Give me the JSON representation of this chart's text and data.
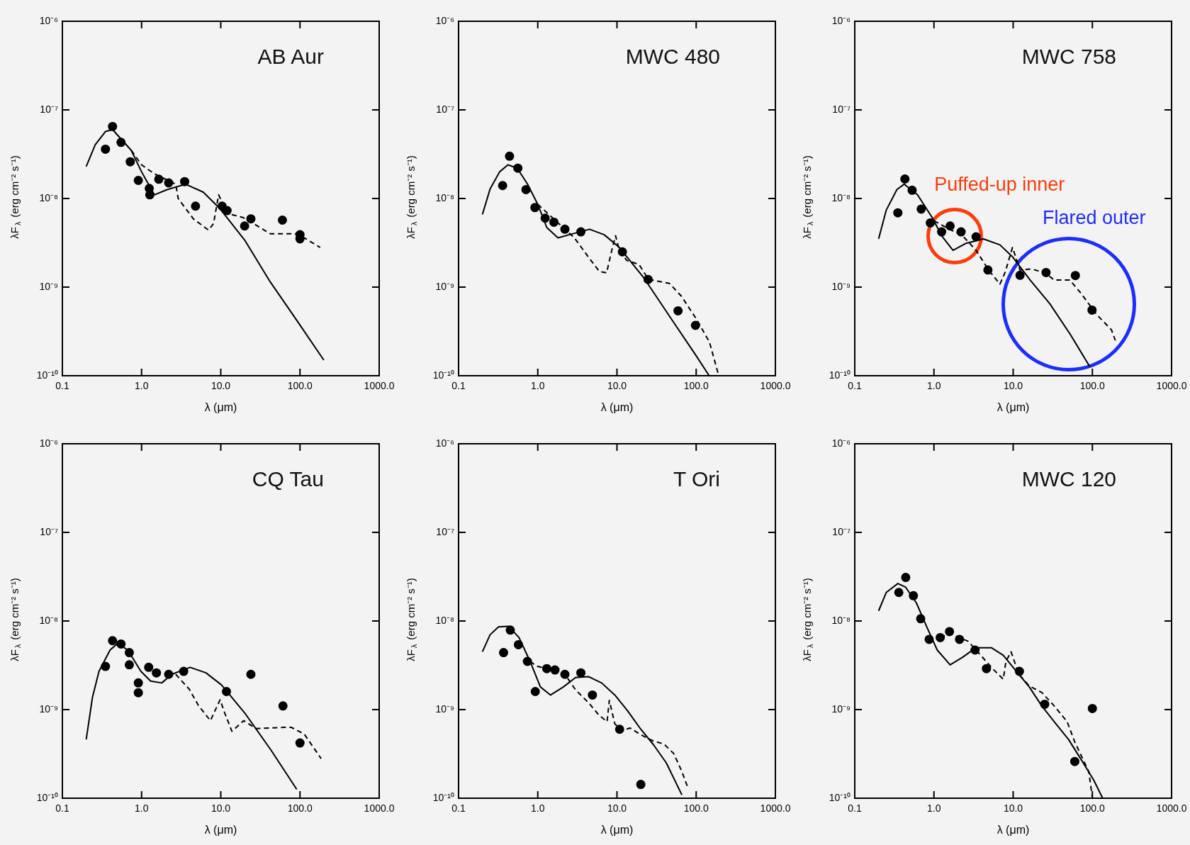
{
  "chart_data": [
    {
      "type": "line",
      "title": "AB Aur",
      "xlabel": "λ (μm)",
      "ylabel": "λF$_{λ}$ (erg cm⁻² s⁻¹)",
      "log": "xy",
      "xlim": [
        0.1,
        1000
      ],
      "ylim": [
        1e-10,
        1e-06
      ],
      "xticks": [
        {
          "value": 0.1,
          "label": "0.1"
        },
        {
          "value": 1,
          "label": "1.0"
        },
        {
          "value": 10,
          "label": "10.0"
        },
        {
          "value": 100,
          "label": "100.0"
        },
        {
          "value": 1000,
          "label": "1000.0"
        }
      ],
      "yticks": [
        {
          "value": 1e-10,
          "label": "10⁻¹⁰"
        },
        {
          "value": 1e-09,
          "label": "10⁻⁹"
        },
        {
          "value": 1e-08,
          "label": "10⁻⁸"
        },
        {
          "value": 1e-07,
          "label": "10⁻⁷"
        },
        {
          "value": 1e-06,
          "label": "10⁻⁶"
        }
      ],
      "series": [
        {
          "type": "scatter",
          "color": "#000000",
          "marker": "circle",
          "x": [
            0.35,
            0.43,
            0.55,
            0.72,
            0.91,
            1.25,
            1.27,
            1.65,
            2.2,
            3.5,
            4.8,
            10.4,
            12,
            20,
            24,
            60,
            100,
            100
          ],
          "values": [
            3.6e-08,
            6.5e-08,
            4.3e-08,
            2.6e-08,
            1.6e-08,
            1.3e-08,
            1.1e-08,
            1.65e-08,
            1.5e-08,
            1.55e-08,
            8.2e-09,
            8.2e-09,
            7.3e-09,
            4.9e-09,
            5.9e-09,
            5.7e-09,
            3.9e-09,
            3.5e-09
          ]
        },
        {
          "type": "line",
          "color": "#000000",
          "marker": "none",
          "line_style": "solid",
          "x": [
            0.2,
            0.26,
            0.35,
            0.43,
            0.74,
            1.0,
            1.45,
            2.1,
            3.6,
            6.0,
            9.6,
            20,
            42,
            93,
            200
          ],
          "values": [
            2.3e-08,
            4.05e-08,
            5.7e-08,
            6e-08,
            3.5e-08,
            2e-08,
            1.1e-08,
            1.26e-08,
            1.45e-08,
            1.18e-08,
            7.8e-09,
            3.4e-09,
            1.15e-09,
            4.1e-10,
            1.5e-10
          ]
        },
        {
          "type": "line",
          "color": "#000000",
          "marker": "none",
          "line_style": "dashed",
          "x": [
            0.74,
            1.0,
            1.45,
            2.7,
            2.9,
            4.5,
            7.0,
            8.1,
            9.4,
            12,
            19,
            26,
            42,
            93,
            180
          ],
          "values": [
            3.5e-08,
            2.4e-08,
            1.9e-08,
            1.45e-08,
            1e-08,
            5.9e-09,
            4.4e-09,
            5.2e-09,
            1.1e-08,
            6.8e-09,
            6.1e-09,
            5.2e-09,
            4e-09,
            4e-09,
            2.8e-09
          ]
        }
      ]
    },
    {
      "type": "line",
      "title": "MWC 480",
      "xlabel": "λ (μm)",
      "ylabel": "λF$_{λ}$ (erg cm⁻² s⁻¹)",
      "log": "xy",
      "xlim": [
        0.1,
        1000
      ],
      "ylim": [
        1e-10,
        1e-06
      ],
      "xticks": [
        {
          "value": 0.1,
          "label": "0.1"
        },
        {
          "value": 1,
          "label": "1.0"
        },
        {
          "value": 10,
          "label": "10.0"
        },
        {
          "value": 100,
          "label": "100.0"
        },
        {
          "value": 1000,
          "label": "1000.0"
        }
      ],
      "yticks": [
        {
          "value": 1e-10,
          "label": "10⁻¹⁰"
        },
        {
          "value": 1e-09,
          "label": "10⁻⁹"
        },
        {
          "value": 1e-08,
          "label": "10⁻⁸"
        },
        {
          "value": 1e-07,
          "label": "10⁻⁷"
        },
        {
          "value": 1e-06,
          "label": "10⁻⁶"
        }
      ],
      "series": [
        {
          "type": "scatter",
          "color": "#000000",
          "marker": "circle",
          "x": [
            0.36,
            0.44,
            0.56,
            0.71,
            0.92,
            1.24,
            1.6,
            2.2,
            3.5,
            11.7,
            24.7,
            59,
            98
          ],
          "values": [
            1.4e-08,
            3e-08,
            2.2e-08,
            1.26e-08,
            7.9e-09,
            6e-09,
            5.4e-09,
            4.5e-09,
            4.2e-09,
            2.5e-09,
            1.22e-09,
            5.4e-10,
            3.7e-10
          ]
        },
        {
          "type": "line",
          "color": "#000000",
          "marker": "none",
          "line_style": "solid",
          "x": [
            0.2,
            0.25,
            0.33,
            0.42,
            0.55,
            0.74,
            1.0,
            1.3,
            1.8,
            2.5,
            4.5,
            6.9,
            10.7,
            22,
            46,
            95,
            146
          ],
          "values": [
            6.6e-09,
            1.28e-08,
            2e-08,
            2.4e-08,
            2.2e-08,
            1.46e-08,
            8.6e-09,
            4.7e-09,
            3.6e-09,
            3.9e-09,
            4.5e-09,
            3.9e-09,
            2.8e-09,
            1.26e-09,
            4.7e-10,
            1.8e-10,
            1e-10
          ]
        },
        {
          "type": "line",
          "color": "#000000",
          "marker": "none",
          "line_style": "dashed",
          "x": [
            1.0,
            2.9,
            4.5,
            6.0,
            7.4,
            8.6,
            9.6,
            10.7,
            13.3,
            19,
            25,
            46,
            65,
            100,
            147,
            190
          ],
          "values": [
            8.6e-09,
            3.6e-09,
            2.1e-09,
            1.5e-09,
            1.45e-09,
            2.6e-09,
            3.8e-09,
            2.6e-09,
            2e-09,
            1.8e-09,
            1.22e-09,
            1.1e-09,
            7.9e-10,
            4.4e-10,
            2.4e-10,
            1.05e-10
          ]
        }
      ]
    },
    {
      "type": "line",
      "title": "MWC 758",
      "xlabel": "λ (μm)",
      "ylabel": "λF$_{λ}$ (erg cm⁻² s⁻¹)",
      "log": "xy",
      "xlim": [
        0.1,
        1000
      ],
      "ylim": [
        1e-10,
        1e-06
      ],
      "xticks": [
        {
          "value": 0.1,
          "label": "0.1"
        },
        {
          "value": 1,
          "label": "1.0"
        },
        {
          "value": 10,
          "label": "10.0"
        },
        {
          "value": 100,
          "label": "100.0"
        },
        {
          "value": 1000,
          "label": "1000.0"
        }
      ],
      "yticks": [
        {
          "value": 1e-10,
          "label": "10⁻¹⁰"
        },
        {
          "value": 1e-09,
          "label": "10⁻⁹"
        },
        {
          "value": 1e-08,
          "label": "10⁻⁸"
        },
        {
          "value": 1e-07,
          "label": "10⁻⁷"
        },
        {
          "value": 1e-06,
          "label": "10⁻⁶"
        }
      ],
      "annotations": [
        "Puffed-up inner",
        "Flared outer"
      ],
      "series": [
        {
          "type": "scatter",
          "color": "#000000",
          "marker": "circle",
          "x": [
            0.35,
            0.43,
            0.53,
            0.69,
            0.9,
            1.25,
            1.6,
            2.2,
            3.4,
            4.8,
            12.2,
            26,
            61,
            99
          ],
          "values": [
            6.9e-09,
            1.66e-08,
            1.24e-08,
            7.6e-09,
            5.3e-09,
            4.2e-09,
            4.9e-09,
            4.2e-09,
            3.7e-09,
            1.56e-09,
            1.36e-09,
            1.46e-09,
            1.35e-09,
            5.5e-10
          ]
        },
        {
          "type": "line",
          "color": "#000000",
          "marker": "none",
          "line_style": "solid",
          "x": [
            0.2,
            0.25,
            0.34,
            0.42,
            0.62,
            0.96,
            1.25,
            1.74,
            2.5,
            4.2,
            6.8,
            9.8,
            16.4,
            29,
            53,
            93
          ],
          "values": [
            3.5e-09,
            7.4e-09,
            1.26e-08,
            1.45e-08,
            1.1e-08,
            6e-09,
            3.8e-09,
            2.6e-09,
            3.1e-09,
            3.5e-09,
            3e-09,
            2.2e-09,
            1.2e-09,
            6.5e-10,
            2.9e-10,
            1.26e-10
          ]
        },
        {
          "type": "line",
          "color": "#000000",
          "marker": "none",
          "line_style": "dashed",
          "x": [
            1.0,
            1.5,
            2.3,
            3.4,
            4.9,
            6.8,
            7.9,
            9.8,
            12.2,
            17,
            25,
            33,
            52,
            72,
            111,
            174,
            195
          ],
          "values": [
            5.6e-09,
            4.6e-09,
            3.8e-09,
            2.6e-09,
            1.56e-09,
            1.08e-09,
            1.46e-09,
            2.8e-09,
            1.56e-09,
            1.6e-09,
            1.46e-09,
            1.2e-09,
            1.2e-09,
            8.5e-10,
            5e-10,
            3.3e-10,
            2.5e-10
          ]
        }
      ]
    },
    {
      "type": "line",
      "title": "CQ Tau",
      "xlabel": "λ (μm)",
      "ylabel": "λF$_{λ}$ (erg cm⁻² s⁻¹)",
      "log": "xy",
      "xlim": [
        0.1,
        1000
      ],
      "ylim": [
        1e-10,
        1e-06
      ],
      "xticks": [
        {
          "value": 0.1,
          "label": "0.1"
        },
        {
          "value": 1,
          "label": "1.0"
        },
        {
          "value": 10,
          "label": "10.0"
        },
        {
          "value": 100,
          "label": "100.0"
        },
        {
          "value": 1000,
          "label": "1000.0"
        }
      ],
      "yticks": [
        {
          "value": 1e-10,
          "label": "10⁻¹⁰"
        },
        {
          "value": 1e-09,
          "label": "10⁻⁹"
        },
        {
          "value": 1e-08,
          "label": "10⁻⁸"
        },
        {
          "value": 1e-07,
          "label": "10⁻⁷"
        },
        {
          "value": 1e-06,
          "label": "10⁻⁶"
        }
      ],
      "series": [
        {
          "type": "scatter",
          "color": "#000000",
          "marker": "circle",
          "x": [
            0.35,
            0.43,
            0.55,
            0.7,
            0.7,
            0.91,
            0.91,
            1.23,
            1.54,
            2.2,
            3.4,
            11.8,
            24,
            61,
            100
          ],
          "values": [
            3.07e-09,
            6e-09,
            5.5e-09,
            4.4e-09,
            3.2e-09,
            2e-09,
            1.55e-09,
            3e-09,
            2.6e-09,
            2.5e-09,
            2.7e-09,
            1.6e-09,
            2.5e-09,
            1.1e-09,
            4.2e-10
          ]
        },
        {
          "type": "line",
          "color": "#000000",
          "marker": "none",
          "line_style": "solid",
          "x": [
            0.2,
            0.24,
            0.29,
            0.4,
            0.5,
            0.67,
            0.98,
            1.3,
            1.8,
            2.4,
            4.1,
            6.5,
            10.2,
            20,
            43,
            91
          ],
          "values": [
            4.6e-10,
            1.38e-09,
            2.7e-09,
            4.7e-09,
            5.6e-09,
            4.7e-09,
            2.7e-09,
            2.1e-09,
            2e-09,
            2.5e-09,
            3e-09,
            2.6e-09,
            1.9e-09,
            9.2e-10,
            3.5e-10,
            1.26e-10
          ]
        },
        {
          "type": "line",
          "color": "#000000",
          "marker": "none",
          "line_style": "dashed",
          "x": [
            2.7,
            4,
            5.2,
            7.4,
            8.8,
            9.8,
            11.2,
            13.8,
            19.5,
            28,
            63,
            78,
            113,
            185
          ],
          "values": [
            2.5e-09,
            1.7e-09,
            1.12e-09,
            7.5e-10,
            1.05e-09,
            1.29e-09,
            9.2e-10,
            5.7e-10,
            7.5e-10,
            6.1e-10,
            6.3e-10,
            6.3e-10,
            5.3e-10,
            2.8e-10
          ]
        }
      ]
    },
    {
      "type": "line",
      "title": "T Ori",
      "xlabel": "λ (μm)",
      "ylabel": "λF$_{λ}$ (erg cm⁻² s⁻¹)",
      "log": "xy",
      "xlim": [
        0.1,
        1000
      ],
      "ylim": [
        1e-10,
        1e-06
      ],
      "xticks": [
        {
          "value": 0.1,
          "label": "0.1"
        },
        {
          "value": 1,
          "label": "1.0"
        },
        {
          "value": 10,
          "label": "10.0"
        },
        {
          "value": 100,
          "label": "100.0"
        },
        {
          "value": 1000,
          "label": "1000.0"
        }
      ],
      "yticks": [
        {
          "value": 1e-10,
          "label": "10⁻¹⁰"
        },
        {
          "value": 1e-09,
          "label": "10⁻⁹"
        },
        {
          "value": 1e-08,
          "label": "10⁻⁸"
        },
        {
          "value": 1e-07,
          "label": "10⁻⁷"
        },
        {
          "value": 1e-06,
          "label": "10⁻⁶"
        }
      ],
      "series": [
        {
          "type": "scatter",
          "color": "#000000",
          "marker": "circle",
          "x": [
            0.37,
            0.45,
            0.57,
            0.74,
            0.93,
            1.3,
            1.65,
            2.2,
            3.5,
            4.9,
            10.8,
            20
          ],
          "values": [
            4.4e-09,
            7.9e-09,
            5.4e-09,
            3.5e-09,
            1.6e-09,
            2.9e-09,
            2.8e-09,
            2.5e-09,
            2.6e-09,
            1.46e-09,
            6e-10,
            1.43e-10
          ]
        },
        {
          "type": "line",
          "color": "#000000",
          "marker": "none",
          "line_style": "solid",
          "x": [
            0.2,
            0.25,
            0.32,
            0.43,
            0.58,
            0.8,
            1.08,
            1.45,
            2.1,
            3.0,
            4.4,
            6.4,
            9.4,
            13.6,
            20,
            29,
            42,
            66
          ],
          "values": [
            4.5e-09,
            7e-09,
            8.6e-09,
            8.7e-09,
            6.5e-09,
            3.5e-09,
            1.8e-09,
            1.46e-09,
            1.8e-09,
            2.3e-09,
            2.35e-09,
            2e-09,
            1.46e-09,
            9.7e-10,
            6e-10,
            4e-10,
            2.5e-10,
            1.09e-10
          ]
        },
        {
          "type": "line",
          "color": "#000000",
          "marker": "none",
          "line_style": "dashed",
          "x": [
            0.8,
            0.96,
            1.3,
            1.65,
            2.2,
            3.0,
            4.4,
            5.9,
            7.5,
            8.0,
            9.4,
            11.7,
            14.6,
            20,
            29,
            39,
            52,
            66,
            79
          ],
          "values": [
            3.5e-09,
            3.1e-09,
            2.9e-09,
            2.8e-09,
            2.5e-09,
            1.67e-09,
            1.19e-09,
            8.7e-10,
            7.3e-10,
            1.27e-09,
            6.9e-10,
            5.8e-10,
            6.2e-10,
            5.2e-10,
            4.4e-10,
            4.1e-10,
            3.2e-10,
            2e-10,
            1.3e-10
          ]
        }
      ]
    },
    {
      "type": "line",
      "title": "MWC 120",
      "xlabel": "λ (μm)",
      "ylabel": "λF$_{λ}$ (erg cm⁻² s⁻¹)",
      "log": "xy",
      "xlim": [
        0.1,
        1000
      ],
      "ylim": [
        1e-10,
        1e-06
      ],
      "xticks": [
        {
          "value": 0.1,
          "label": "0.1"
        },
        {
          "value": 1,
          "label": "1.0"
        },
        {
          "value": 10,
          "label": "10.0"
        },
        {
          "value": 100,
          "label": "100.0"
        },
        {
          "value": 1000,
          "label": "1000.0"
        }
      ],
      "yticks": [
        {
          "value": 1e-10,
          "label": "10⁻¹⁰"
        },
        {
          "value": 1e-09,
          "label": "10⁻⁹"
        },
        {
          "value": 1e-08,
          "label": "10⁻⁸"
        },
        {
          "value": 1e-07,
          "label": "10⁻⁷"
        },
        {
          "value": 1e-06,
          "label": "10⁻⁶"
        }
      ],
      "series": [
        {
          "type": "scatter",
          "color": "#000000",
          "marker": "circle",
          "x": [
            0.36,
            0.44,
            0.55,
            0.68,
            0.87,
            1.2,
            1.57,
            2.1,
            3.3,
            4.6,
            12,
            25,
            60,
            100
          ],
          "values": [
            2.1e-08,
            3.1e-08,
            1.93e-08,
            1.06e-08,
            6.2e-09,
            6.5e-09,
            7.6e-09,
            6.2e-09,
            4.7e-09,
            2.9e-09,
            2.7e-09,
            1.15e-09,
            2.6e-10,
            1.03e-09
          ]
        },
        {
          "type": "line",
          "color": "#000000",
          "marker": "none",
          "line_style": "solid",
          "x": [
            0.2,
            0.25,
            0.35,
            0.44,
            0.6,
            0.81,
            1.1,
            1.6,
            2.3,
            3.4,
            5.3,
            7.5,
            11,
            16,
            23,
            33,
            50,
            71,
            104,
            135
          ],
          "values": [
            1.3e-08,
            2.1e-08,
            2.65e-08,
            2.4e-08,
            1.6e-08,
            8.6e-09,
            4.7e-09,
            3.2e-09,
            3.9e-09,
            5e-09,
            5e-09,
            4.1e-09,
            2.7e-09,
            1.8e-09,
            1.1e-09,
            7.3e-10,
            4.6e-10,
            2.8e-10,
            1.6e-10,
            1e-10
          ]
        },
        {
          "type": "line",
          "color": "#000000",
          "marker": "none",
          "line_style": "dashed",
          "x": [
            1.2,
            1.6,
            2.7,
            3.4,
            5.5,
            7.5,
            8.1,
            9.4,
            11.8,
            16,
            23,
            33,
            48,
            60,
            90,
            100
          ],
          "values": [
            6.5e-09,
            7.2e-09,
            5.9e-09,
            4.7e-09,
            2.9e-09,
            2.2e-09,
            3.5e-09,
            4.5e-09,
            2.5e-09,
            1.85e-09,
            1.56e-09,
            1.1e-09,
            7.3e-10,
            4.3e-10,
            2e-10,
            1.02e-10
          ]
        }
      ]
    }
  ]
}
